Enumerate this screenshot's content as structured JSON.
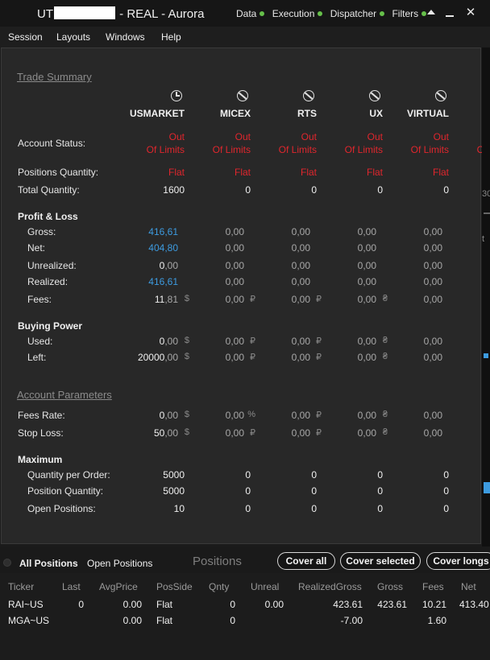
{
  "window": {
    "title_prefix": "UT",
    "title_suffix": "- REAL - Aurora",
    "connections": [
      "Data",
      "Execution",
      "Dispatcher",
      "Filters"
    ],
    "close_glyph": "✕"
  },
  "menu": [
    "Session",
    "Layouts",
    "Windows",
    "Help"
  ],
  "trade_summary": {
    "title": "Trade Summary",
    "exchanges": [
      "USMARKET",
      "MICEX",
      "RTS",
      "UX",
      "VIRTUAL"
    ],
    "exchange_icons": [
      "clock-icon",
      "no-entry-icon",
      "no-entry-icon",
      "no-entry-icon",
      "no-entry-icon"
    ],
    "account_status_label": "Account Status:",
    "account_status": {
      "line1": "Out",
      "line2": "Of Limits"
    },
    "positions_quantity_label": "Positions Quantity:",
    "positions_quantity": [
      "Flat",
      "Flat",
      "Flat",
      "Flat",
      "Flat"
    ],
    "total_quantity_label": "Total Quantity:",
    "total_quantity": [
      "1600",
      "0",
      "0",
      "0",
      "0"
    ]
  },
  "profit_loss": {
    "title": "Profit & Loss",
    "rows": [
      {
        "label": "Gross:",
        "values": [
          {
            "int": "416",
            "dec": ",61"
          },
          {
            "int": "0",
            "dec": ",00"
          },
          {
            "int": "0",
            "dec": ",00"
          },
          {
            "int": "0",
            "dec": ",00"
          },
          {
            "int": "0",
            "dec": ",00"
          }
        ],
        "currency": [
          "",
          "",
          "",
          "",
          ""
        ]
      },
      {
        "label": "Net:",
        "values": [
          {
            "int": "404",
            "dec": ",80"
          },
          {
            "int": "0",
            "dec": ",00"
          },
          {
            "int": "0",
            "dec": ",00"
          },
          {
            "int": "0",
            "dec": ",00"
          },
          {
            "int": "0",
            "dec": ",00"
          }
        ],
        "currency": [
          "",
          "",
          "",
          "",
          ""
        ]
      },
      {
        "label": "Unrealized:",
        "values": [
          {
            "int": "0",
            "dec": ",00"
          },
          {
            "int": "0",
            "dec": ",00"
          },
          {
            "int": "0",
            "dec": ",00"
          },
          {
            "int": "0",
            "dec": ",00"
          },
          {
            "int": "0",
            "dec": ",00"
          }
        ],
        "currency": [
          "",
          "",
          "",
          "",
          ""
        ]
      },
      {
        "label": "Realized:",
        "values": [
          {
            "int": "416",
            "dec": ",61"
          },
          {
            "int": "0",
            "dec": ",00"
          },
          {
            "int": "0",
            "dec": ",00"
          },
          {
            "int": "0",
            "dec": ",00"
          },
          {
            "int": "0",
            "dec": ",00"
          }
        ],
        "currency": [
          "",
          "",
          "",
          "",
          ""
        ]
      },
      {
        "label": "Fees:",
        "values": [
          {
            "int": "11",
            "dec": ",81"
          },
          {
            "int": "0",
            "dec": ",00"
          },
          {
            "int": "0",
            "dec": ",00"
          },
          {
            "int": "0",
            "dec": ",00"
          },
          {
            "int": "0",
            "dec": ",00"
          }
        ],
        "currency": [
          "$",
          "₽",
          "₽",
          "₴",
          ""
        ]
      }
    ]
  },
  "buying_power": {
    "title": "Buying Power",
    "rows": [
      {
        "label": "Used:",
        "values": [
          {
            "int": "0",
            "dec": ",00"
          },
          {
            "int": "0",
            "dec": ",00"
          },
          {
            "int": "0",
            "dec": ",00"
          },
          {
            "int": "0",
            "dec": ",00"
          },
          {
            "int": "0",
            "dec": ",00"
          }
        ],
        "currency": [
          "$",
          "₽",
          "₽",
          "₴",
          ""
        ]
      },
      {
        "label": "Left:",
        "values": [
          {
            "int": "20000",
            "dec": ",00"
          },
          {
            "int": "0",
            "dec": ",00"
          },
          {
            "int": "0",
            "dec": ",00"
          },
          {
            "int": "0",
            "dec": ",00"
          },
          {
            "int": "0",
            "dec": ",00"
          }
        ],
        "currency": [
          "$",
          "₽",
          "₽",
          "₴",
          ""
        ]
      }
    ]
  },
  "account_parameters": {
    "title": "Account Parameters",
    "rows": [
      {
        "label": "Fees Rate:",
        "values": [
          {
            "int": "0",
            "dec": ",00"
          },
          {
            "int": "0",
            "dec": ",00"
          },
          {
            "int": "0",
            "dec": ",00"
          },
          {
            "int": "0",
            "dec": ",00"
          },
          {
            "int": "0",
            "dec": ",00"
          }
        ],
        "currency": [
          "$",
          "%",
          "₽",
          "₴",
          ""
        ]
      },
      {
        "label": "Stop Loss:",
        "values": [
          {
            "int": "50",
            "dec": ",00"
          },
          {
            "int": "0",
            "dec": ",00"
          },
          {
            "int": "0",
            "dec": ",00"
          },
          {
            "int": "0",
            "dec": ",00"
          },
          {
            "int": "0",
            "dec": ",00"
          }
        ],
        "currency": [
          "$",
          "₽",
          "₽",
          "₴",
          ""
        ]
      }
    ]
  },
  "maximum": {
    "title": "Maximum",
    "rows": [
      {
        "label": "Quantity per Order:",
        "values": [
          "5000",
          "0",
          "0",
          "0",
          "0"
        ]
      },
      {
        "label": "Position Quantity:",
        "values": [
          "5000",
          "0",
          "0",
          "0",
          "0"
        ]
      },
      {
        "label": "Open Positions:",
        "values": [
          "10",
          "0",
          "0",
          "0",
          "0"
        ]
      }
    ]
  },
  "positions": {
    "tabs": [
      "All Positions",
      "Open Positions"
    ],
    "title": "Positions",
    "buttons": [
      "Cover all",
      "Cover selected",
      "Cover longs"
    ],
    "columns": [
      "Ticker",
      "Last",
      "AvgPrice",
      "PosSide",
      "Qnty",
      "Unreal",
      "RealizedGross",
      "Gross",
      "Fees",
      "Net"
    ],
    "rows": [
      {
        "ticker": "RAI~US",
        "last": "0",
        "avg_price": "0.00",
        "pos_side": "Flat",
        "qnty": "0",
        "unreal": "0.00",
        "realized_gross": "423.61",
        "gross": "423.61",
        "fees": "10.21",
        "net": "413.40"
      },
      {
        "ticker": "MGA~US",
        "last": "",
        "avg_price": "0.00",
        "pos_side": "Flat",
        "qnty": "0",
        "unreal": "",
        "realized_gross": "-7.00",
        "gross": "",
        "fees": "1.60",
        "net": ""
      }
    ]
  },
  "colors": {
    "negative": "#e0262d",
    "flat": "#74b53b",
    "profit": "#3d9be0",
    "connected": "#66c04a"
  }
}
